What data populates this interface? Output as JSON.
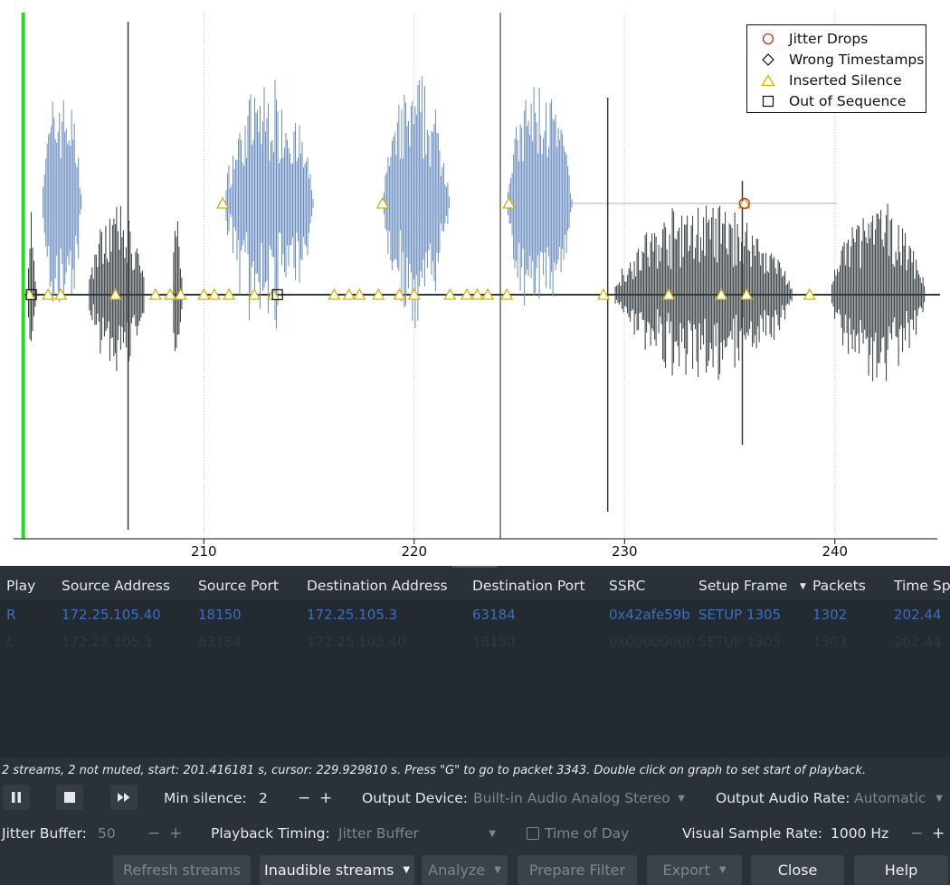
{
  "chart_data": {
    "type": "scatter",
    "xlim": [
      201.416181,
      245
    ],
    "x_ticks": [
      "210",
      "220",
      "230",
      "240"
    ],
    "legend_position": "top-right",
    "grid": "vertical dotted",
    "cursor_x": 229.92981,
    "playback_start_x": 201.416181,
    "legend": [
      {
        "label": "Jitter Drops",
        "marker": "circle",
        "color": "#c0302a"
      },
      {
        "label": "Wrong Timestamps",
        "marker": "diamond",
        "color": "#111111"
      },
      {
        "label": "Inserted Silence",
        "marker": "triangle",
        "color": "#d8b000"
      },
      {
        "label": "Out of Sequence",
        "marker": "square",
        "color": "#111111"
      }
    ],
    "series": [
      {
        "color": "#6a8ec0",
        "bursts": [
          [
            202.3,
            204.2
          ],
          [
            211.0,
            215.2
          ],
          [
            218.5,
            221.7
          ],
          [
            224.4,
            227.5
          ]
        ]
      },
      {
        "color": "#333a3e",
        "bursts": [
          [
            201.6,
            202.0
          ],
          [
            204.5,
            207.2
          ],
          [
            208.5,
            209.0
          ],
          [
            229.5,
            238.0
          ],
          [
            239.8,
            244.3
          ]
        ]
      }
    ],
    "silence_markers_upper": [
      210.9,
      218.5,
      224.5,
      235.7
    ],
    "silence_markers_lower": [
      201.7,
      202.6,
      203.2,
      205.8,
      207.7,
      208.4,
      208.9,
      210.0,
      210.5,
      211.2,
      212.4,
      213.3,
      216.2,
      216.9,
      217.4,
      218.3,
      219.3,
      220.0,
      221.7,
      222.5,
      223.0,
      223.5,
      224.4,
      229.0,
      232.1,
      234.6,
      235.8,
      238.8
    ],
    "out_of_sequence_markers": [
      201.8,
      213.5
    ],
    "jitter_drop_markers": [
      235.7
    ]
  },
  "colors": {
    "accent_green": "#22dd22",
    "link_blue": "#3a6fc4",
    "bg_dark": "#2a3138"
  },
  "table": {
    "columns": [
      "Play",
      "Source Address",
      "Source Port",
      "Destination Address",
      "Destination Port",
      "SSRC",
      "Setup Frame",
      "Packets",
      "Time Sp"
    ],
    "sort_column": "Packets",
    "rows": [
      [
        "R",
        "172.25.105.40",
        "18150",
        "172.25.105.3",
        "63184",
        "0x42afe59b",
        "SETUP 1305",
        "1302",
        "202.44"
      ],
      [
        "L",
        "172.25.105.3",
        "63184",
        "172.25.105.40",
        "18150",
        "0x00000000",
        "SETUP 1305",
        "1303",
        "202.44"
      ]
    ]
  },
  "status": {
    "text": "2 streams, 2 not muted, start: 201.416181 s, cursor: 229.929810 s. Press \"G\" to go to packet 3343. Double click on graph to set start of playback."
  },
  "controls": {
    "play_icon": "pause-icon",
    "stop_icon": "stop-icon",
    "skip_icon": "fast-forward-icon",
    "min_silence_label": "Min silence:",
    "min_silence_value": "2",
    "output_device_label": "Output Device:",
    "output_device_value": "Built-in Audio Analog Stereo",
    "output_rate_label": "Output Audio Rate:",
    "output_rate_value": "Automatic",
    "jitter_buffer_label": "Jitter Buffer:",
    "jitter_buffer_value": "50",
    "playback_timing_label": "Playback Timing:",
    "playback_timing_value": "Jitter Buffer",
    "time_of_day_label": "Time of Day",
    "visual_rate_label": "Visual Sample Rate:",
    "visual_rate_value": "1000 Hz",
    "minus": "−",
    "plus": "+"
  },
  "buttons": {
    "refresh": "Refresh streams",
    "inaudible": "Inaudible streams",
    "analyze": "Analyze",
    "prepare_filter": "Prepare Filter",
    "export": "Export",
    "close": "Close",
    "help": "Help"
  }
}
